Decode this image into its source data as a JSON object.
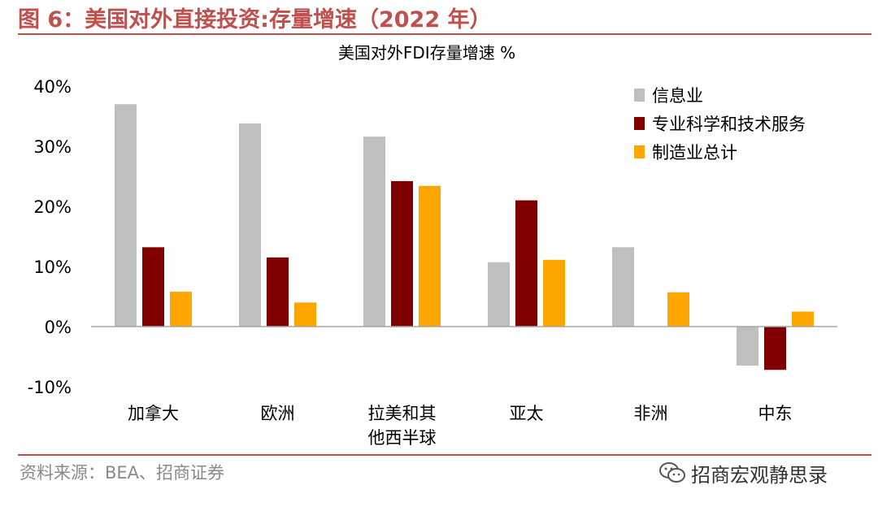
{
  "header": {
    "figure_title": "图 6：美国对外直接投资:存量增速（2022 年）"
  },
  "footer": {
    "source": "资料来源：BEA、招商证券",
    "watermark": "招商宏观静思录",
    "watermark_icon": "wechat-icon"
  },
  "chart_data": {
    "type": "bar",
    "title": "美国对外FDI存量增速 %",
    "categories": [
      [
        "加拿大"
      ],
      [
        "欧洲"
      ],
      [
        "拉美和其",
        "他西半球"
      ],
      [
        "亚太"
      ],
      [
        "非洲"
      ],
      [
        "中东"
      ]
    ],
    "series": [
      {
        "name": "信息业",
        "color": "#bfbfbf",
        "values": [
          37.0,
          33.8,
          31.6,
          10.7,
          13.2,
          -6.5
        ]
      },
      {
        "name": "专业科学和技术服务",
        "color": "#800000",
        "values": [
          13.2,
          11.5,
          24.2,
          21.0,
          null,
          -7.2
        ]
      },
      {
        "name": "制造业总计",
        "color": "#ffa500",
        "values": [
          5.8,
          4.0,
          23.4,
          11.1,
          5.7,
          2.5
        ]
      }
    ],
    "ylim": [
      -10,
      40
    ],
    "yticks": [
      "-10%",
      "0%",
      "10%",
      "20%",
      "30%",
      "40%"
    ],
    "ytick_values": [
      -10,
      0,
      10,
      20,
      30,
      40
    ],
    "xlabel": "",
    "ylabel": "",
    "grid": false,
    "legend": "top-right"
  }
}
